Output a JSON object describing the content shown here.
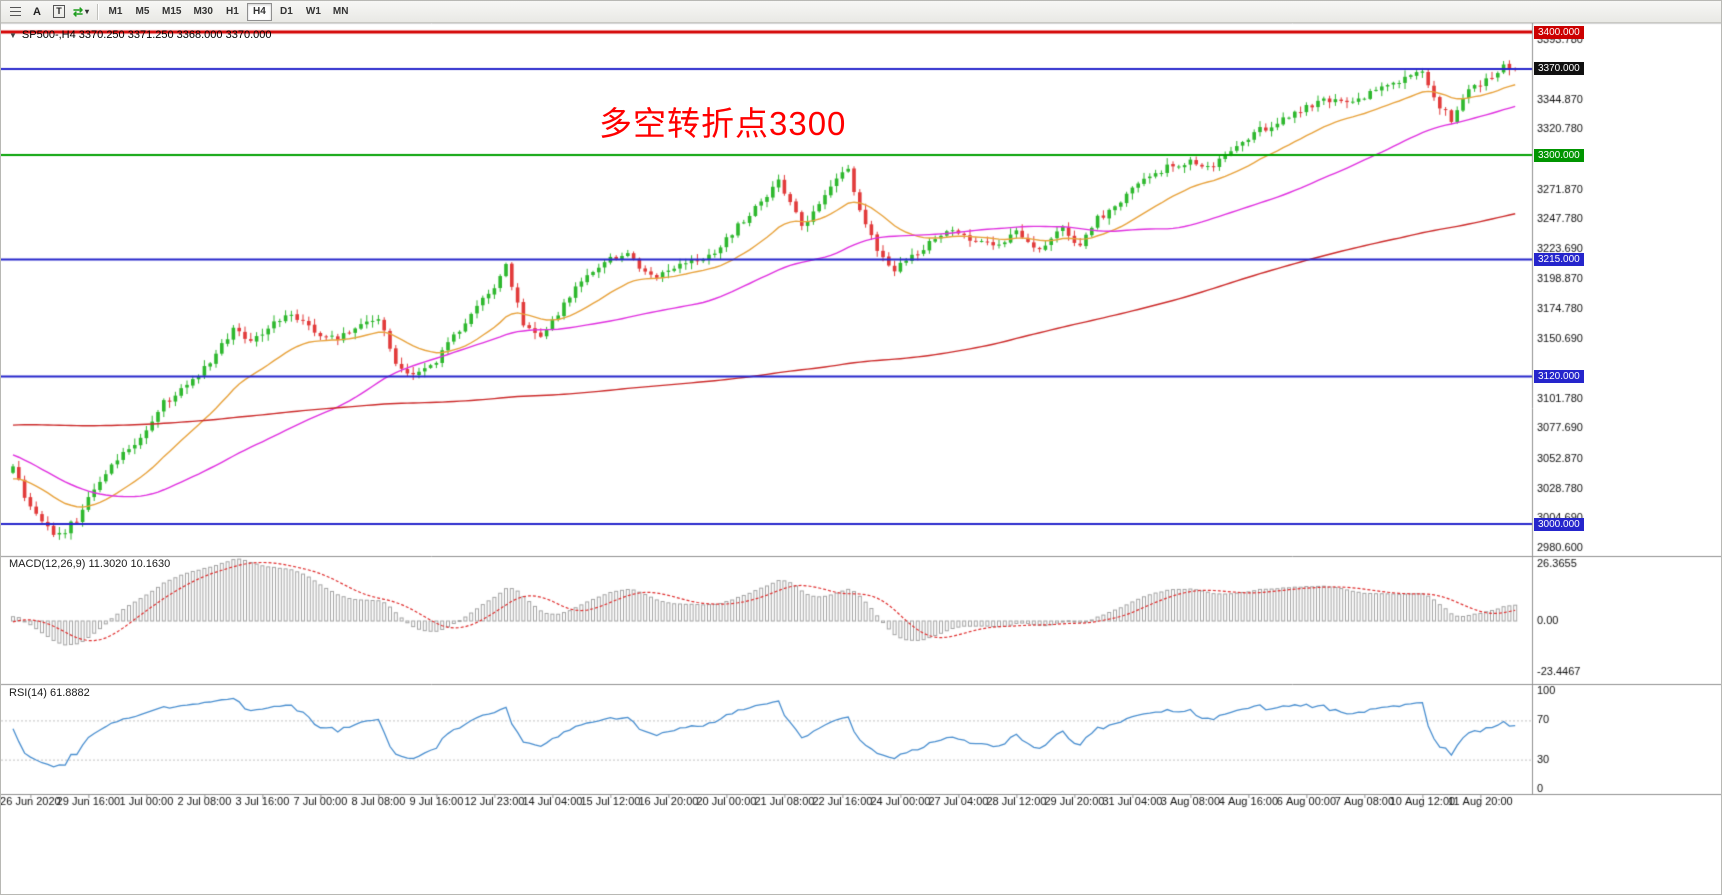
{
  "toolbar": {
    "tool_a_label": "A",
    "tool_t_label": "T",
    "timeframes": [
      "M1",
      "M5",
      "M15",
      "M30",
      "H1",
      "H4",
      "D1",
      "W1",
      "MN"
    ],
    "active_timeframe": "H4"
  },
  "symbol_info": {
    "marker": "▼",
    "text": "SP500-,H4  3370.250 3371.250 3368.000 3370.000"
  },
  "annotation": {
    "text": "多空转折点3300",
    "color": "#ff0000"
  },
  "main_chart": {
    "price_axis_labels": [
      "3393.780",
      "3344.870",
      "3320.780",
      "3271.870",
      "3247.780",
      "3223.690",
      "3198.870",
      "3174.780",
      "3150.690",
      "3101.780",
      "3077.690",
      "3052.870",
      "3028.780",
      "3004.690",
      "2980.600"
    ],
    "price_tags": [
      {
        "label": "3400.000",
        "price": 3400,
        "color": "#cc0000"
      },
      {
        "label": "3370.000",
        "price": 3370,
        "color": "#101010"
      },
      {
        "label": "3300.000",
        "price": 3300,
        "color": "#009500"
      },
      {
        "label": "3215.000",
        "price": 3215,
        "color": "#2525cc"
      },
      {
        "label": "3120.000",
        "price": 3120,
        "color": "#2525cc"
      },
      {
        "label": "3000.000",
        "price": 3000,
        "color": "#2525cc"
      }
    ],
    "hlines": [
      {
        "price": 3400,
        "color": "#d40000",
        "width": 3
      },
      {
        "price": 3370,
        "color": "#2525cc",
        "width": 2
      },
      {
        "price": 3300,
        "color": "#00a000",
        "width": 2
      },
      {
        "price": 3215,
        "color": "#2525cc",
        "width": 2
      },
      {
        "price": 3120,
        "color": "#2525cc",
        "width": 2
      },
      {
        "price": 3000,
        "color": "#2525cc",
        "width": 2
      }
    ]
  },
  "macd_panel": {
    "label": "MACD(12,26,9) 11.3020 10.1630",
    "axis": [
      {
        "label": "26.3655",
        "value": 26.3655
      },
      {
        "label": "0.00",
        "value": 0
      },
      {
        "label": "-23.4467",
        "value": -23.4467
      }
    ]
  },
  "rsi_panel": {
    "label": "RSI(14) 61.8882",
    "axis": [
      {
        "label": "100",
        "value": 100
      },
      {
        "label": "70",
        "value": 70
      },
      {
        "label": "30",
        "value": 30
      },
      {
        "label": "0",
        "value": 0
      }
    ],
    "dotted_levels": [
      70,
      30
    ]
  },
  "time_axis": {
    "labels": [
      "26 Jun 2020",
      "29 Jun 16:00",
      "1 Jul 00:00",
      "2 Jul 08:00",
      "3 Jul 16:00",
      "7 Jul 00:00",
      "8 Jul 08:00",
      "9 Jul 16:00",
      "12 Jul 23:00",
      "14 Jul 04:00",
      "15 Jul 12:00",
      "16 Jul 20:00",
      "20 Jul 00:00",
      "21 Jul 08:00",
      "22 Jul 16:00",
      "24 Jul 00:00",
      "27 Jul 04:00",
      "28 Jul 12:00",
      "29 Jul 20:00",
      "31 Jul 04:00",
      "3 Aug 08:00",
      "4 Aug 16:00",
      "6 Aug 00:00",
      "7 Aug 08:00",
      "10 Aug 12:00",
      "11 Aug 20:00"
    ]
  },
  "chart_data": {
    "type": "candlestick",
    "symbol": "SP500-",
    "timeframe": "H4",
    "title": "SP500- H4 with MACD(12,26,9) and RSI(14)",
    "current_bar_ohlc": {
      "open": 3370.25,
      "high": 3371.25,
      "low": 3368.0,
      "close": 3370.0
    },
    "ylim_labeled": [
      2980.6,
      3393.78
    ],
    "visible_bars": 260,
    "bars_per_time_label": 10,
    "horizontal_levels": [
      3400,
      3370,
      3300,
      3215,
      3120,
      3000
    ],
    "price_keyframes": [
      [
        0,
        3045
      ],
      [
        2,
        3022
      ],
      [
        5,
        3000
      ],
      [
        8,
        2990
      ],
      [
        11,
        3004
      ],
      [
        14,
        3030
      ],
      [
        18,
        3052
      ],
      [
        22,
        3068
      ],
      [
        26,
        3098
      ],
      [
        30,
        3112
      ],
      [
        34,
        3132
      ],
      [
        38,
        3158
      ],
      [
        41,
        3150
      ],
      [
        44,
        3160
      ],
      [
        48,
        3172
      ],
      [
        52,
        3156
      ],
      [
        56,
        3150
      ],
      [
        60,
        3163
      ],
      [
        63,
        3168
      ],
      [
        66,
        3132
      ],
      [
        69,
        3120
      ],
      [
        72,
        3127
      ],
      [
        76,
        3152
      ],
      [
        80,
        3178
      ],
      [
        83,
        3190
      ],
      [
        85,
        3210
      ],
      [
        88,
        3162
      ],
      [
        91,
        3152
      ],
      [
        94,
        3172
      ],
      [
        98,
        3198
      ],
      [
        102,
        3215
      ],
      [
        106,
        3220
      ],
      [
        110,
        3200
      ],
      [
        113,
        3206
      ],
      [
        117,
        3212
      ],
      [
        121,
        3222
      ],
      [
        125,
        3242
      ],
      [
        129,
        3262
      ],
      [
        132,
        3278
      ],
      [
        134,
        3260
      ],
      [
        136,
        3243
      ],
      [
        139,
        3258
      ],
      [
        142,
        3282
      ],
      [
        144,
        3288
      ],
      [
        146,
        3255
      ],
      [
        149,
        3222
      ],
      [
        152,
        3208
      ],
      [
        155,
        3218
      ],
      [
        158,
        3228
      ],
      [
        161,
        3240
      ],
      [
        165,
        3232
      ],
      [
        169,
        3226
      ],
      [
        173,
        3236
      ],
      [
        177,
        3222
      ],
      [
        181,
        3240
      ],
      [
        184,
        3226
      ],
      [
        187,
        3248
      ],
      [
        191,
        3262
      ],
      [
        195,
        3280
      ],
      [
        199,
        3290
      ],
      [
        203,
        3296
      ],
      [
        207,
        3290
      ],
      [
        211,
        3308
      ],
      [
        215,
        3320
      ],
      [
        219,
        3328
      ],
      [
        223,
        3338
      ],
      [
        227,
        3345
      ],
      [
        231,
        3342
      ],
      [
        235,
        3355
      ],
      [
        239,
        3360
      ],
      [
        243,
        3368
      ],
      [
        246,
        3340
      ],
      [
        248,
        3328
      ],
      [
        251,
        3352
      ],
      [
        254,
        3360
      ],
      [
        257,
        3372
      ],
      [
        259,
        3370
      ]
    ],
    "prehistory_keyframes": [
      [
        -200,
        3005
      ],
      [
        -160,
        3060
      ],
      [
        -120,
        3110
      ],
      [
        -80,
        3130
      ],
      [
        -50,
        3148
      ],
      [
        -34,
        3060
      ],
      [
        -28,
        2988
      ],
      [
        -20,
        3006
      ],
      [
        -10,
        3038
      ],
      [
        -1,
        3044
      ]
    ],
    "overlays": {
      "ma_fast_color": "#e8a33d",
      "ma_mid_color": "#e030e0",
      "ma_slow_color": "#cc2a2a",
      "ma_fast_period": 20,
      "ma_mid_period": 55,
      "ma_slow_period": 200
    },
    "candle_up_color": "#2eb82e",
    "candle_down_color": "#e23b3b",
    "macd": {
      "fast": 12,
      "slow": 26,
      "signal": 9,
      "current_main": 11.302,
      "current_signal": 10.163,
      "hist_color": "#a4a4a4",
      "signal_color": "#e03030"
    },
    "rsi": {
      "period": 14,
      "current": 61.8882,
      "color": "#4a8fd0"
    }
  }
}
